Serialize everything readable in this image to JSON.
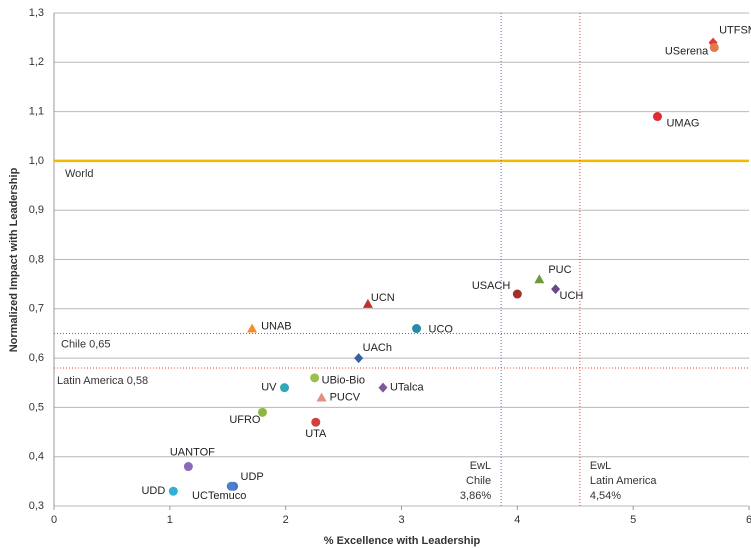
{
  "chart_data": {
    "type": "scatter",
    "x_label": "% Excellence with Leadership",
    "y_label": "Normalized Impact with Leadership",
    "xlim": [
      0,
      6
    ],
    "xticks": [
      0,
      1,
      2,
      3,
      4,
      5,
      6
    ],
    "ylim": [
      0.3,
      1.3
    ],
    "yticks": [
      {
        "value": 0.3,
        "label": "0,3"
      },
      {
        "value": 0.4,
        "label": "0,4"
      },
      {
        "value": 0.5,
        "label": "0,5"
      },
      {
        "value": 0.6,
        "label": "0,6"
      },
      {
        "value": 0.7,
        "label": "0,7"
      },
      {
        "value": 0.8,
        "label": "0,8"
      },
      {
        "value": 0.9,
        "label": "0,9"
      },
      {
        "value": 1.0,
        "label": "1,0"
      },
      {
        "value": 1.1,
        "label": "1,1"
      },
      {
        "value": 1.2,
        "label": "1,2"
      },
      {
        "value": 1.3,
        "label": "1,3"
      }
    ],
    "grid": true,
    "labels": [
      "UTFSM",
      "USerena",
      "UMAG",
      "PUC",
      "UCH",
      "USACH",
      "UCN",
      "UNAB",
      "UCO",
      "UACh",
      "UBio-Bio",
      "UV",
      "UTalca",
      "PUCV",
      "UFRO",
      "UTA",
      "UANTOF",
      "UDP",
      "UCTemuco",
      "UDD"
    ],
    "x": [
      5.69,
      5.7,
      5.21,
      4.19,
      4.33,
      4.0,
      2.71,
      1.71,
      3.13,
      2.63,
      2.25,
      1.99,
      2.84,
      2.31,
      1.8,
      2.26,
      1.16,
      1.55,
      1.53,
      1.03
    ],
    "y": [
      1.24,
      1.23,
      1.09,
      0.76,
      0.74,
      0.73,
      0.71,
      0.66,
      0.66,
      0.6,
      0.56,
      0.54,
      0.54,
      0.52,
      0.49,
      0.47,
      0.38,
      0.34,
      0.34,
      0.33
    ],
    "colors": [
      "#e03c2c",
      "#e07a50",
      "#e02c30",
      "#6a9a3c",
      "#6a4a8a",
      "#a03028",
      "#c0302c",
      "#f0902c",
      "#2a8aa8",
      "#3a5fa0",
      "#9ac050",
      "#30a8b8",
      "#7a5a9a",
      "#e09080",
      "#8ab840",
      "#d04040",
      "#8a6ab8",
      "#4a70c0",
      "#4a80d0",
      "#30b0d8"
    ],
    "markers": [
      "diamond",
      "circle",
      "circle",
      "triangle",
      "diamond",
      "circle",
      "triangle",
      "triangle",
      "circle",
      "diamond",
      "circle",
      "circle",
      "diamond",
      "triangle",
      "circle",
      "circle",
      "circle",
      "circle",
      "circle",
      "circle"
    ],
    "hlines": [
      {
        "value": 1.0,
        "label": "World",
        "color": "#f5b800"
      },
      {
        "value": 0.65,
        "label": "Chile 0,65",
        "color": "#4a78c8"
      },
      {
        "value": 0.58,
        "label": "Latin America  0,58",
        "color": "#e8402c"
      }
    ],
    "vlines": [
      {
        "value": 3.86,
        "label": [
          "EwL",
          "Chile",
          "3,86%"
        ],
        "color": "#4a78c8"
      },
      {
        "value": 4.54,
        "label": [
          "EwL",
          "Latin America",
          "4,54%"
        ],
        "color": "#e8402c"
      }
    ]
  }
}
